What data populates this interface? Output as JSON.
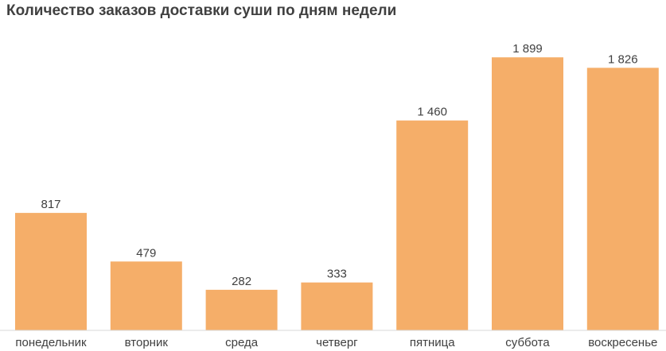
{
  "chart_data": {
    "type": "bar",
    "title": "Количество заказов доставки суши по дням недели",
    "xlabel": "",
    "ylabel": "",
    "categories": [
      "понедельник",
      "вторник",
      "среда",
      "четверг",
      "пятница",
      "суббота",
      "воскресенье"
    ],
    "values": [
      817,
      479,
      282,
      333,
      1460,
      1899,
      1826
    ],
    "value_labels": [
      "817",
      "479",
      "282",
      "333",
      "1 460",
      "1 899",
      "1 826"
    ],
    "ylim": [
      0,
      2000
    ],
    "grid": false,
    "legend": "none",
    "bar_color": "#F5AE69"
  }
}
